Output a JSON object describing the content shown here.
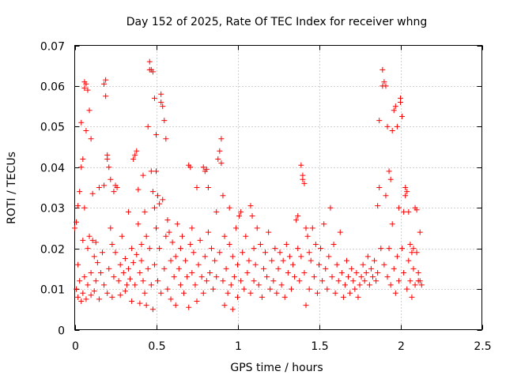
{
  "chart_data": {
    "type": "scatter",
    "title": "Day 152 of 2025, Rate Of TEC Index for receiver whng",
    "xlabel": "GPS time / hours",
    "ylabel": "ROTI / TECUs",
    "xlim": [
      0,
      2.5
    ],
    "ylim": [
      0,
      0.07
    ],
    "xticks": [
      "0",
      "0.5",
      "1",
      "1.5",
      "2",
      "2.5"
    ],
    "xtick_values": [
      0,
      0.5,
      1,
      1.5,
      2,
      2.5
    ],
    "yticks": [
      "0",
      "0.01",
      "0.02",
      "0.03",
      "0.04",
      "0.05",
      "0.06",
      "0.07"
    ],
    "ytick_values": [
      0,
      0.01,
      0.02,
      0.03,
      0.04,
      0.05,
      0.06,
      0.07
    ],
    "grid": true,
    "marker": "+",
    "color": "#ff0000",
    "points": [
      [
        0.0,
        0.025
      ],
      [
        0.01,
        0.0265
      ],
      [
        0.01,
        0.01
      ],
      [
        0.02,
        0.0305
      ],
      [
        0.02,
        0.016
      ],
      [
        0.02,
        0.008
      ],
      [
        0.03,
        0.034
      ],
      [
        0.03,
        0.012
      ],
      [
        0.04,
        0.007
      ],
      [
        0.04,
        0.051
      ],
      [
        0.04,
        0.04
      ],
      [
        0.05,
        0.042
      ],
      [
        0.05,
        0.022
      ],
      [
        0.05,
        0.009
      ],
      [
        0.06,
        0.0595
      ],
      [
        0.06,
        0.061
      ],
      [
        0.06,
        0.03
      ],
      [
        0.06,
        0.013
      ],
      [
        0.07,
        0.0605
      ],
      [
        0.07,
        0.049
      ],
      [
        0.07,
        0.0075
      ],
      [
        0.08,
        0.059
      ],
      [
        0.08,
        0.02
      ],
      [
        0.08,
        0.011
      ],
      [
        0.09,
        0.054
      ],
      [
        0.09,
        0.023
      ],
      [
        0.1,
        0.047
      ],
      [
        0.1,
        0.0085
      ],
      [
        0.1,
        0.014
      ],
      [
        0.11,
        0.0335
      ],
      [
        0.11,
        0.022
      ],
      [
        0.12,
        0.018
      ],
      [
        0.12,
        0.0095
      ],
      [
        0.13,
        0.0215
      ],
      [
        0.13,
        0.012
      ],
      [
        0.14,
        0.0165
      ],
      [
        0.15,
        0.035
      ],
      [
        0.15,
        0.0075
      ],
      [
        0.16,
        0.014
      ],
      [
        0.17,
        0.019
      ],
      [
        0.18,
        0.0605
      ],
      [
        0.18,
        0.0355
      ],
      [
        0.18,
        0.011
      ],
      [
        0.19,
        0.0615
      ],
      [
        0.19,
        0.0575
      ],
      [
        0.2,
        0.043
      ],
      [
        0.2,
        0.042
      ],
      [
        0.2,
        0.009
      ],
      [
        0.21,
        0.04
      ],
      [
        0.21,
        0.015
      ],
      [
        0.22,
        0.037
      ],
      [
        0.22,
        0.025
      ],
      [
        0.23,
        0.021
      ],
      [
        0.23,
        0.008
      ],
      [
        0.24,
        0.034
      ],
      [
        0.24,
        0.013
      ],
      [
        0.25,
        0.0355
      ],
      [
        0.25,
        0.019
      ],
      [
        0.26,
        0.035
      ],
      [
        0.27,
        0.012
      ],
      [
        0.28,
        0.016
      ],
      [
        0.28,
        0.0085
      ],
      [
        0.29,
        0.023
      ],
      [
        0.3,
        0.014
      ],
      [
        0.31,
        0.0175
      ],
      [
        0.31,
        0.0095
      ],
      [
        0.32,
        0.011
      ],
      [
        0.33,
        0.029
      ],
      [
        0.33,
        0.015
      ],
      [
        0.34,
        0.0125
      ],
      [
        0.35,
        0.02
      ],
      [
        0.35,
        0.007
      ],
      [
        0.36,
        0.0165
      ],
      [
        0.36,
        0.042
      ],
      [
        0.37,
        0.043
      ],
      [
        0.37,
        0.011
      ],
      [
        0.38,
        0.044
      ],
      [
        0.38,
        0.0185
      ],
      [
        0.39,
        0.0345
      ],
      [
        0.39,
        0.026
      ],
      [
        0.4,
        0.014
      ],
      [
        0.4,
        0.0065
      ],
      [
        0.41,
        0.021
      ],
      [
        0.41,
        0.017
      ],
      [
        0.42,
        0.012
      ],
      [
        0.42,
        0.038
      ],
      [
        0.43,
        0.029
      ],
      [
        0.43,
        0.009
      ],
      [
        0.44,
        0.023
      ],
      [
        0.44,
        0.006
      ],
      [
        0.45,
        0.05
      ],
      [
        0.45,
        0.015
      ],
      [
        0.46,
        0.064
      ],
      [
        0.46,
        0.066
      ],
      [
        0.46,
        0.02
      ],
      [
        0.47,
        0.064
      ],
      [
        0.47,
        0.039
      ],
      [
        0.47,
        0.011
      ],
      [
        0.48,
        0.0635
      ],
      [
        0.48,
        0.034
      ],
      [
        0.48,
        0.005
      ],
      [
        0.49,
        0.057
      ],
      [
        0.49,
        0.03
      ],
      [
        0.49,
        0.016
      ],
      [
        0.5,
        0.048
      ],
      [
        0.5,
        0.039
      ],
      [
        0.5,
        0.025
      ],
      [
        0.51,
        0.033
      ],
      [
        0.51,
        0.012
      ],
      [
        0.52,
        0.031
      ],
      [
        0.52,
        0.02
      ],
      [
        0.53,
        0.056
      ],
      [
        0.53,
        0.058
      ],
      [
        0.53,
        0.009
      ],
      [
        0.54,
        0.055
      ],
      [
        0.54,
        0.032
      ],
      [
        0.55,
        0.0515
      ],
      [
        0.55,
        0.015
      ],
      [
        0.56,
        0.047
      ],
      [
        0.56,
        0.023
      ],
      [
        0.57,
        0.027
      ],
      [
        0.57,
        0.01
      ],
      [
        0.58,
        0.024
      ],
      [
        0.59,
        0.017
      ],
      [
        0.59,
        0.0075
      ],
      [
        0.6,
        0.0215
      ],
      [
        0.61,
        0.013
      ],
      [
        0.62,
        0.018
      ],
      [
        0.62,
        0.006
      ],
      [
        0.63,
        0.026
      ],
      [
        0.64,
        0.015
      ],
      [
        0.65,
        0.011
      ],
      [
        0.65,
        0.02
      ],
      [
        0.66,
        0.023
      ],
      [
        0.67,
        0.009
      ],
      [
        0.68,
        0.017
      ],
      [
        0.69,
        0.013
      ],
      [
        0.7,
        0.0405
      ],
      [
        0.7,
        0.0055
      ],
      [
        0.71,
        0.04
      ],
      [
        0.71,
        0.021
      ],
      [
        0.72,
        0.025
      ],
      [
        0.72,
        0.014
      ],
      [
        0.73,
        0.019
      ],
      [
        0.74,
        0.011
      ],
      [
        0.75,
        0.035
      ],
      [
        0.75,
        0.007
      ],
      [
        0.76,
        0.016
      ],
      [
        0.77,
        0.022
      ],
      [
        0.78,
        0.013
      ],
      [
        0.79,
        0.04
      ],
      [
        0.79,
        0.009
      ],
      [
        0.8,
        0.039
      ],
      [
        0.8,
        0.018
      ],
      [
        0.81,
        0.0395
      ],
      [
        0.81,
        0.012
      ],
      [
        0.82,
        0.035
      ],
      [
        0.82,
        0.024
      ],
      [
        0.83,
        0.014
      ],
      [
        0.84,
        0.02
      ],
      [
        0.85,
        0.01
      ],
      [
        0.86,
        0.017
      ],
      [
        0.87,
        0.029
      ],
      [
        0.87,
        0.013
      ],
      [
        0.88,
        0.042
      ],
      [
        0.89,
        0.044
      ],
      [
        0.89,
        0.019
      ],
      [
        0.9,
        0.041
      ],
      [
        0.9,
        0.047
      ],
      [
        0.91,
        0.033
      ],
      [
        0.91,
        0.012
      ],
      [
        0.92,
        0.023
      ],
      [
        0.92,
        0.006
      ],
      [
        0.93,
        0.015
      ],
      [
        0.94,
        0.009
      ],
      [
        0.95,
        0.021
      ],
      [
        0.95,
        0.03
      ],
      [
        0.96,
        0.011
      ],
      [
        0.97,
        0.018
      ],
      [
        0.97,
        0.005
      ],
      [
        0.98,
        0.013
      ],
      [
        0.99,
        0.025
      ],
      [
        1.0,
        0.016
      ],
      [
        1.0,
        0.008
      ],
      [
        1.01,
        0.028
      ],
      [
        1.02,
        0.029
      ],
      [
        1.02,
        0.012
      ],
      [
        1.03,
        0.019
      ],
      [
        1.04,
        0.01
      ],
      [
        1.05,
        0.023
      ],
      [
        1.06,
        0.014
      ],
      [
        1.07,
        0.017
      ],
      [
        1.08,
        0.0305
      ],
      [
        1.08,
        0.009
      ],
      [
        1.09,
        0.028
      ],
      [
        1.1,
        0.02
      ],
      [
        1.1,
        0.012
      ],
      [
        1.11,
        0.016
      ],
      [
        1.12,
        0.025
      ],
      [
        1.13,
        0.011
      ],
      [
        1.14,
        0.021
      ],
      [
        1.15,
        0.008
      ],
      [
        1.16,
        0.015
      ],
      [
        1.17,
        0.019
      ],
      [
        1.18,
        0.013
      ],
      [
        1.19,
        0.024
      ],
      [
        1.2,
        0.01
      ],
      [
        1.21,
        0.017
      ],
      [
        1.22,
        0.012
      ],
      [
        1.23,
        0.02
      ],
      [
        1.24,
        0.009
      ],
      [
        1.25,
        0.015
      ],
      [
        1.26,
        0.019
      ],
      [
        1.27,
        0.011
      ],
      [
        1.28,
        0.017
      ],
      [
        1.29,
        0.008
      ],
      [
        1.3,
        0.021
      ],
      [
        1.31,
        0.014
      ],
      [
        1.32,
        0.018
      ],
      [
        1.33,
        0.01
      ],
      [
        1.34,
        0.016
      ],
      [
        1.35,
        0.013
      ],
      [
        1.36,
        0.027
      ],
      [
        1.37,
        0.028
      ],
      [
        1.37,
        0.02
      ],
      [
        1.38,
        0.012
      ],
      [
        1.39,
        0.0405
      ],
      [
        1.39,
        0.018
      ],
      [
        1.4,
        0.038
      ],
      [
        1.4,
        0.037
      ],
      [
        1.41,
        0.036
      ],
      [
        1.41,
        0.014
      ],
      [
        1.42,
        0.025
      ],
      [
        1.42,
        0.006
      ],
      [
        1.43,
        0.023
      ],
      [
        1.44,
        0.019
      ],
      [
        1.44,
        0.01
      ],
      [
        1.45,
        0.017
      ],
      [
        1.46,
        0.025
      ],
      [
        1.47,
        0.013
      ],
      [
        1.48,
        0.021
      ],
      [
        1.49,
        0.009
      ],
      [
        1.5,
        0.016
      ],
      [
        1.51,
        0.02
      ],
      [
        1.52,
        0.012
      ],
      [
        1.53,
        0.026
      ],
      [
        1.54,
        0.015
      ],
      [
        1.55,
        0.01
      ],
      [
        1.56,
        0.018
      ],
      [
        1.57,
        0.03
      ],
      [
        1.58,
        0.013
      ],
      [
        1.59,
        0.021
      ],
      [
        1.6,
        0.009
      ],
      [
        1.61,
        0.016
      ],
      [
        1.62,
        0.012
      ],
      [
        1.63,
        0.024
      ],
      [
        1.64,
        0.014
      ],
      [
        1.65,
        0.008
      ],
      [
        1.66,
        0.011
      ],
      [
        1.67,
        0.017
      ],
      [
        1.68,
        0.013
      ],
      [
        1.69,
        0.009
      ],
      [
        1.7,
        0.015
      ],
      [
        1.71,
        0.012
      ],
      [
        1.72,
        0.01
      ],
      [
        1.73,
        0.014
      ],
      [
        1.74,
        0.008
      ],
      [
        1.75,
        0.011
      ],
      [
        1.76,
        0.013
      ],
      [
        1.77,
        0.016
      ],
      [
        1.78,
        0.012
      ],
      [
        1.79,
        0.014
      ],
      [
        1.8,
        0.018
      ],
      [
        1.81,
        0.011
      ],
      [
        1.82,
        0.015
      ],
      [
        1.83,
        0.013
      ],
      [
        1.84,
        0.017
      ],
      [
        1.85,
        0.012
      ],
      [
        1.86,
        0.0305
      ],
      [
        1.86,
        0.014
      ],
      [
        1.87,
        0.035
      ],
      [
        1.87,
        0.0515
      ],
      [
        1.88,
        0.02
      ],
      [
        1.89,
        0.064
      ],
      [
        1.89,
        0.06
      ],
      [
        1.9,
        0.061
      ],
      [
        1.9,
        0.016
      ],
      [
        1.91,
        0.06
      ],
      [
        1.91,
        0.033
      ],
      [
        1.92,
        0.05
      ],
      [
        1.92,
        0.013
      ],
      [
        1.93,
        0.039
      ],
      [
        1.93,
        0.02
      ],
      [
        1.94,
        0.037
      ],
      [
        1.94,
        0.011
      ],
      [
        1.95,
        0.049
      ],
      [
        1.95,
        0.026
      ],
      [
        1.96,
        0.054
      ],
      [
        1.96,
        0.015
      ],
      [
        1.97,
        0.055
      ],
      [
        1.97,
        0.009
      ],
      [
        1.98,
        0.05
      ],
      [
        1.98,
        0.018
      ],
      [
        1.99,
        0.03
      ],
      [
        1.99,
        0.012
      ],
      [
        2.0,
        0.056
      ],
      [
        2.0,
        0.057
      ],
      [
        2.01,
        0.0525
      ],
      [
        2.01,
        0.02
      ],
      [
        2.02,
        0.029
      ],
      [
        2.02,
        0.014
      ],
      [
        2.03,
        0.033
      ],
      [
        2.03,
        0.035
      ],
      [
        2.04,
        0.034
      ],
      [
        2.04,
        0.01
      ],
      [
        2.05,
        0.029
      ],
      [
        2.05,
        0.017
      ],
      [
        2.06,
        0.021
      ],
      [
        2.06,
        0.012
      ],
      [
        2.07,
        0.019
      ],
      [
        2.07,
        0.008
      ],
      [
        2.08,
        0.015
      ],
      [
        2.08,
        0.02
      ],
      [
        2.09,
        0.03
      ],
      [
        2.09,
        0.011
      ],
      [
        2.1,
        0.0295
      ],
      [
        2.1,
        0.019
      ],
      [
        2.11,
        0.014
      ],
      [
        2.11,
        0.012
      ],
      [
        2.12,
        0.024
      ],
      [
        2.12,
        0.012
      ],
      [
        2.13,
        0.011
      ]
    ]
  }
}
